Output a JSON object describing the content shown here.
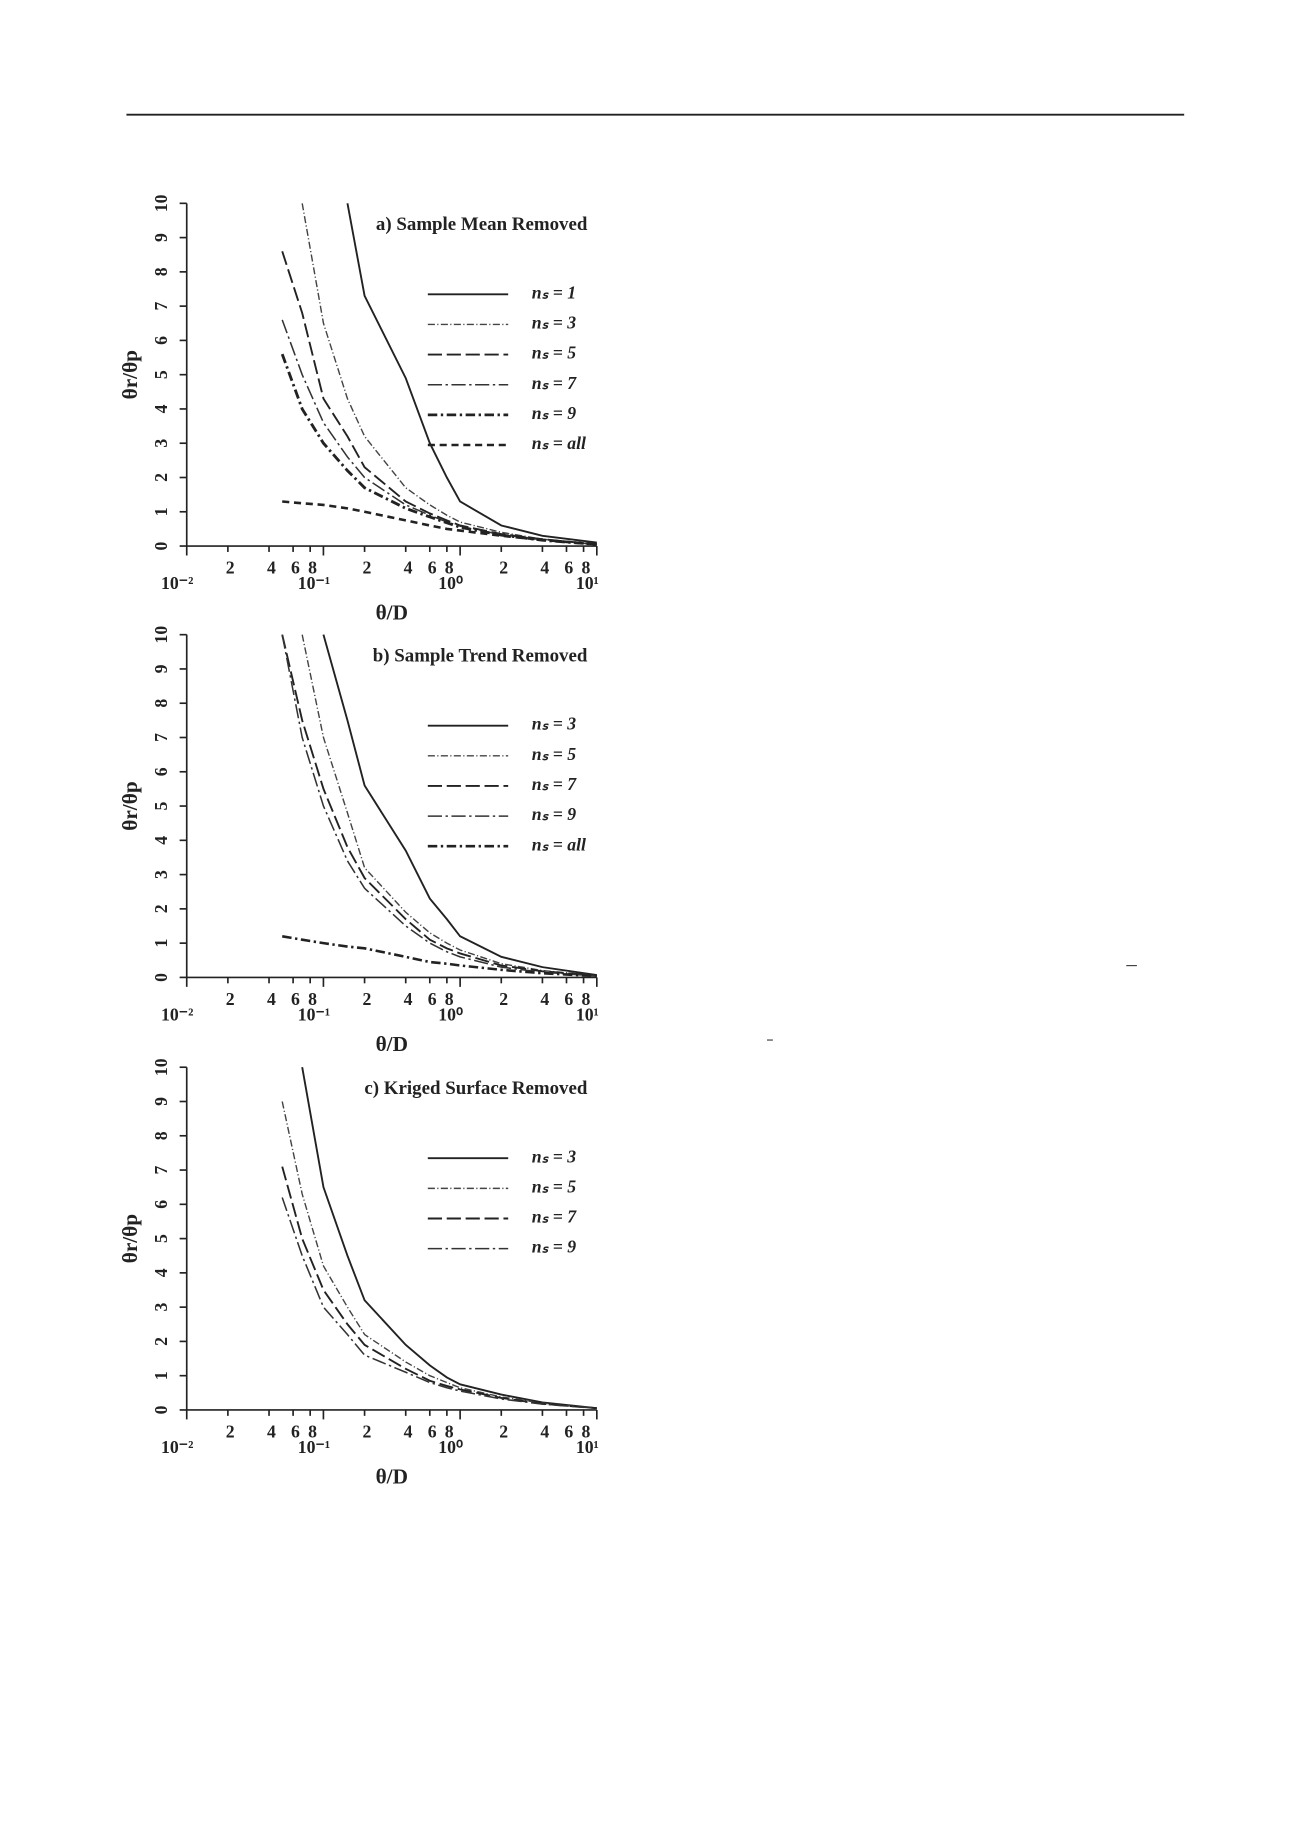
{
  "chart_data": [
    {
      "type": "line",
      "title": "a) Sample Mean Removed",
      "xlabel": "θ/D",
      "ylabel": "θr/θp",
      "xscale": "log",
      "x": [
        0.05,
        0.07,
        0.1,
        0.15,
        0.2,
        0.4,
        0.6,
        0.8,
        1,
        2,
        4,
        10
      ],
      "xlim": [
        0.01,
        10
      ],
      "ylim": [
        0,
        10
      ],
      "xticks": [
        {
          "value": 0.01,
          "label": "10⁻²"
        },
        {
          "value": 0.02,
          "label": "2"
        },
        {
          "value": 0.04,
          "label": "4"
        },
        {
          "value": 0.06,
          "label": "6"
        },
        {
          "value": 0.08,
          "label": "8"
        },
        {
          "value": 0.1,
          "label": "10⁻¹"
        },
        {
          "value": 0.2,
          "label": "2"
        },
        {
          "value": 0.4,
          "label": "4"
        },
        {
          "value": 0.6,
          "label": "6"
        },
        {
          "value": 0.8,
          "label": "8"
        },
        {
          "value": 1,
          "label": "10⁰"
        },
        2,
        4,
        6,
        8,
        {
          "value": 10,
          "label": "10¹"
        }
      ],
      "yticks": [
        0,
        1,
        2,
        3,
        4,
        5,
        6,
        7,
        8,
        9,
        10
      ],
      "series": [
        {
          "name": "nₛ = 1",
          "color": "#222",
          "dash": "none",
          "width": 1.6,
          "values": [
            null,
            null,
            null,
            10,
            7.3,
            4.9,
            3.0,
            2.0,
            1.3,
            0.6,
            0.3,
            0.1
          ]
        },
        {
          "name": "nₛ = 3",
          "color": "#444",
          "dash": "6 2 1 2",
          "width": 1.2,
          "values": [
            null,
            10,
            6.5,
            4.3,
            3.2,
            1.7,
            1.2,
            0.9,
            0.7,
            0.4,
            0.2,
            0.05
          ]
        },
        {
          "name": "nₛ = 5",
          "color": "#222",
          "dash": "12 4",
          "width": 1.6,
          "values": [
            8.6,
            6.8,
            4.3,
            3.2,
            2.3,
            1.3,
            0.95,
            0.75,
            0.6,
            0.35,
            0.2,
            0.05
          ]
        },
        {
          "name": "nₛ = 7",
          "color": "#333",
          "dash": "12 3 2 3",
          "width": 1.3,
          "values": [
            6.6,
            5.0,
            3.6,
            2.6,
            2.0,
            1.2,
            0.9,
            0.7,
            0.58,
            0.33,
            0.18,
            0.05
          ]
        },
        {
          "name": "nₛ = 9",
          "color": "#222",
          "dash": "8 3 2 3",
          "width": 2.4,
          "values": [
            5.6,
            4.0,
            3.0,
            2.2,
            1.7,
            1.1,
            0.85,
            0.68,
            0.55,
            0.32,
            0.17,
            0.05
          ]
        },
        {
          "name": "nₛ = all",
          "color": "#222",
          "dash": "6 4",
          "width": 2.2,
          "values": [
            1.3,
            1.25,
            1.2,
            1.1,
            1.0,
            0.75,
            0.6,
            0.5,
            0.45,
            0.3,
            0.18,
            0.05
          ]
        }
      ]
    },
    {
      "type": "line",
      "title": "b) Sample Trend Removed",
      "xlabel": "θ/D",
      "ylabel": "θr/θp",
      "xscale": "log",
      "x": [
        0.05,
        0.07,
        0.1,
        0.15,
        0.2,
        0.4,
        0.6,
        0.8,
        1,
        2,
        4,
        10
      ],
      "xlim": [
        0.01,
        10
      ],
      "ylim": [
        0,
        10
      ],
      "xticks": [
        {
          "value": 0.01,
          "label": "10⁻²"
        },
        {
          "value": 0.02,
          "label": "2"
        },
        {
          "value": 0.04,
          "label": "4"
        },
        {
          "value": 0.06,
          "label": "6"
        },
        {
          "value": 0.08,
          "label": "8"
        },
        {
          "value": 0.1,
          "label": "10⁻¹"
        },
        {
          "value": 0.2,
          "label": "2"
        },
        {
          "value": 0.4,
          "label": "4"
        },
        {
          "value": 0.6,
          "label": "6"
        },
        {
          "value": 0.8,
          "label": "8"
        },
        {
          "value": 1,
          "label": "10⁰"
        },
        2,
        4,
        6,
        8,
        {
          "value": 10,
          "label": "10¹"
        }
      ],
      "yticks": [
        0,
        1,
        2,
        3,
        4,
        5,
        6,
        7,
        8,
        9,
        10
      ],
      "series": [
        {
          "name": "nₛ = 3",
          "color": "#222",
          "dash": "none",
          "width": 1.6,
          "values": [
            null,
            null,
            10,
            7.5,
            5.6,
            3.7,
            2.3,
            1.7,
            1.2,
            0.6,
            0.3,
            0.07
          ]
        },
        {
          "name": "nₛ = 5",
          "color": "#444",
          "dash": "6 2 1 2",
          "width": 1.2,
          "values": [
            null,
            10,
            7.0,
            4.8,
            3.2,
            1.9,
            1.3,
            1.0,
            0.8,
            0.4,
            0.2,
            0.05
          ]
        },
        {
          "name": "nₛ = 7",
          "color": "#222",
          "dash": "12 4",
          "width": 1.6,
          "values": [
            10,
            7.5,
            5.5,
            3.8,
            2.9,
            1.7,
            1.1,
            0.85,
            0.7,
            0.35,
            0.18,
            0.05
          ]
        },
        {
          "name": "nₛ = 9",
          "color": "#333",
          "dash": "12 3 2 3",
          "width": 1.3,
          "values": [
            10,
            7.0,
            5.0,
            3.4,
            2.6,
            1.5,
            1.0,
            0.75,
            0.6,
            0.3,
            0.15,
            0.04
          ]
        },
        {
          "name": "nₛ = all",
          "color": "#222",
          "dash": "8 3 2 3",
          "width": 2.2,
          "values": [
            1.2,
            1.1,
            1.0,
            0.9,
            0.85,
            0.6,
            0.45,
            0.4,
            0.35,
            0.22,
            0.12,
            0.04
          ]
        }
      ]
    },
    {
      "type": "line",
      "title": "c) Kriged Surface Removed",
      "xlabel": "θ/D",
      "ylabel": "θr/θp",
      "xscale": "log",
      "x": [
        0.05,
        0.07,
        0.1,
        0.15,
        0.2,
        0.4,
        0.6,
        0.8,
        1,
        2,
        4,
        10
      ],
      "xlim": [
        0.01,
        10
      ],
      "ylim": [
        0,
        10
      ],
      "xticks": [
        {
          "value": 0.01,
          "label": "10⁻²"
        },
        {
          "value": 0.02,
          "label": "2"
        },
        {
          "value": 0.04,
          "label": "4"
        },
        {
          "value": 0.06,
          "label": "6"
        },
        {
          "value": 0.08,
          "label": "8"
        },
        {
          "value": 0.1,
          "label": "10⁻¹"
        },
        {
          "value": 0.2,
          "label": "2"
        },
        {
          "value": 0.4,
          "label": "4"
        },
        {
          "value": 0.6,
          "label": "6"
        },
        {
          "value": 0.8,
          "label": "8"
        },
        {
          "value": 1,
          "label": "10⁰"
        },
        2,
        4,
        6,
        8,
        {
          "value": 10,
          "label": "10¹"
        }
      ],
      "yticks": [
        0,
        1,
        2,
        3,
        4,
        5,
        6,
        7,
        8,
        9,
        10
      ],
      "series": [
        {
          "name": "nₛ = 3",
          "color": "#222",
          "dash": "none",
          "width": 1.6,
          "values": [
            null,
            10,
            6.5,
            4.5,
            3.2,
            1.9,
            1.3,
            0.95,
            0.75,
            0.45,
            0.22,
            0.05
          ]
        },
        {
          "name": "nₛ = 5",
          "color": "#444",
          "dash": "6 2 1 2",
          "width": 1.2,
          "values": [
            9.0,
            6.3,
            4.2,
            3.0,
            2.2,
            1.4,
            1.0,
            0.8,
            0.65,
            0.38,
            0.2,
            0.05
          ]
        },
        {
          "name": "nₛ = 7",
          "color": "#222",
          "dash": "12 4",
          "width": 1.6,
          "values": [
            7.1,
            5.0,
            3.5,
            2.5,
            1.9,
            1.2,
            0.85,
            0.7,
            0.6,
            0.35,
            0.18,
            0.05
          ]
        },
        {
          "name": "nₛ = 9",
          "color": "#333",
          "dash": "12 3 2 3",
          "width": 1.3,
          "values": [
            6.2,
            4.5,
            3.0,
            2.2,
            1.6,
            1.1,
            0.8,
            0.65,
            0.55,
            0.32,
            0.17,
            0.05
          ]
        }
      ]
    }
  ]
}
